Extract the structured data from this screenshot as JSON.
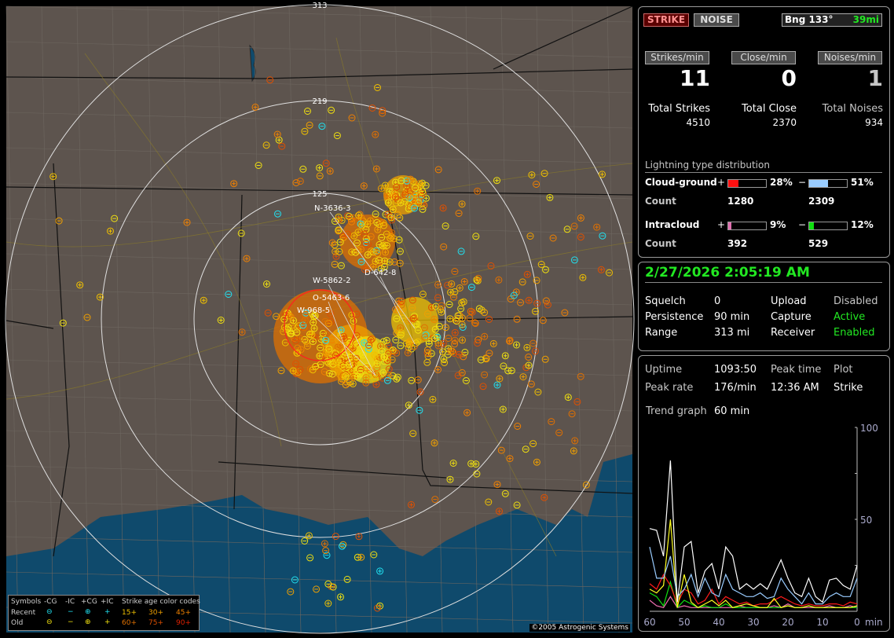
{
  "map": {
    "range_rings": [
      "313",
      "219",
      "125"
    ],
    "storm_labels": [
      "N-3636-3",
      "D-642-8",
      "W-5862-2",
      "O-5463-6",
      "W-968-5"
    ],
    "copyright": "©2005 Astrogenic Systems",
    "colors": {
      "land": "#5d544e",
      "water": "#0f4a6c",
      "ring": "#e0e0e0",
      "recent": "#20e0f0",
      "old": "#f0e010",
      "age15": "#f0c000",
      "age30": "#f0a000",
      "age45": "#f08000",
      "age60": "#e07000",
      "age75": "#e05000",
      "age90": "#e02000"
    }
  },
  "legend": {
    "symbols_label": "Symbols",
    "columns": [
      "-CG",
      "-IC",
      "+CG",
      "+IC"
    ],
    "recent_label": "Recent",
    "old_label": "Old",
    "age_title": "Strike age color codes",
    "ages_recent": [
      "15+",
      "30+",
      "45+"
    ],
    "ages_old": [
      "60+",
      "75+",
      "90+"
    ]
  },
  "top": {
    "strike_btn": "STRIKE",
    "noise_btn": "NOISE",
    "bearing": "Bng 133°",
    "distance": "39mi",
    "rates": [
      {
        "label": "Strikes/min",
        "value": "11",
        "total_label": "Total Strikes",
        "total": "4510"
      },
      {
        "label": "Close/min",
        "value": "0",
        "total_label": "Total Close",
        "total": "2370"
      },
      {
        "label": "Noises/min",
        "value": "1",
        "total_label": "Total Noises",
        "total": "934"
      }
    ],
    "dist_title": "Lightning type distribution",
    "cg_label": "Cloud-ground",
    "ic_label": "Intracloud",
    "count_label": "Count",
    "plus": "+",
    "minus": "−",
    "cg_pos": {
      "pct_text": "28%",
      "pct": 28,
      "count": "1280",
      "color": "#ff1010"
    },
    "cg_neg": {
      "pct_text": "51%",
      "pct": 51,
      "count": "2309",
      "color": "#99ccff"
    },
    "ic_pos": {
      "pct_text": "9%",
      "pct": 9,
      "count": "392",
      "color": "#e070b0"
    },
    "ic_neg": {
      "pct_text": "12%",
      "pct": 12,
      "count": "529",
      "color": "#10e010"
    }
  },
  "status": {
    "datetime": "2/27/2026 2:05:19 AM",
    "rows": [
      {
        "k": "Squelch",
        "v": "0",
        "k2": "Upload",
        "v2": "Disabled"
      },
      {
        "k": "Persistence",
        "v": "90 min",
        "k2": "Capture",
        "v2": "Active"
      },
      {
        "k": "Range",
        "v": "313 mi",
        "k2": "Receiver",
        "v2": "Enabled"
      }
    ]
  },
  "stats": {
    "uptime_label": "Uptime",
    "uptime": "1093:50",
    "peak_time_label": "Peak time",
    "plot_label": "Plot",
    "peak_rate_label": "Peak rate",
    "peak_rate": "176/min",
    "peak_time": "12:36 AM",
    "plot": "Strike",
    "trend_label": "Trend graph",
    "trend": "60 min"
  },
  "chart_data": {
    "type": "line",
    "x": [
      60,
      58,
      56,
      54,
      52,
      50,
      48,
      46,
      44,
      42,
      40,
      38,
      36,
      34,
      32,
      30,
      28,
      26,
      24,
      22,
      20,
      18,
      16,
      14,
      12,
      10,
      8,
      6,
      4,
      2,
      0
    ],
    "xticks": [
      "60",
      "50",
      "40",
      "30",
      "20",
      "10",
      "0"
    ],
    "xlabel": "min",
    "yticks": [
      "100",
      "50"
    ],
    "ylim": [
      0,
      100
    ],
    "xlim": [
      60,
      0
    ],
    "series": [
      {
        "color": "#ffffff",
        "values": [
          45,
          44,
          30,
          82,
          5,
          35,
          38,
          10,
          22,
          26,
          12,
          35,
          30,
          12,
          15,
          12,
          15,
          12,
          20,
          28,
          18,
          10,
          8,
          18,
          8,
          5,
          17,
          18,
          14,
          12,
          25
        ]
      },
      {
        "color": "#99ccff",
        "values": [
          35,
          18,
          18,
          30,
          8,
          12,
          20,
          8,
          18,
          10,
          8,
          20,
          12,
          10,
          8,
          8,
          10,
          7,
          8,
          18,
          12,
          8,
          4,
          10,
          4,
          4,
          8,
          10,
          8,
          8,
          18
        ]
      },
      {
        "color": "#ffff20",
        "values": [
          12,
          10,
          14,
          50,
          2,
          20,
          5,
          2,
          4,
          6,
          3,
          6,
          2,
          3,
          4,
          3,
          2,
          2,
          7,
          2,
          3,
          2,
          2,
          3,
          2,
          2,
          2,
          2,
          2,
          2,
          3
        ]
      },
      {
        "color": "#ff1a1a",
        "values": [
          15,
          12,
          20,
          14,
          4,
          12,
          10,
          4,
          6,
          12,
          4,
          8,
          6,
          4,
          5,
          3,
          4,
          4,
          6,
          8,
          6,
          4,
          3,
          4,
          3,
          3,
          4,
          4,
          3,
          5,
          4
        ]
      },
      {
        "color": "#10e010",
        "values": [
          10,
          8,
          3,
          16,
          2,
          6,
          4,
          2,
          3,
          2,
          2,
          4,
          2,
          2,
          2,
          2,
          2,
          2,
          2,
          2,
          3,
          2,
          2,
          3,
          2,
          2,
          2,
          2,
          2,
          2,
          2
        ]
      },
      {
        "color": "#f070b0",
        "values": [
          6,
          3,
          2,
          8,
          2,
          3,
          2,
          2,
          2,
          2,
          2,
          2,
          2,
          3,
          2,
          2,
          2,
          2,
          3,
          2,
          4,
          2,
          2,
          2,
          2,
          2,
          3,
          2,
          2,
          3,
          2
        ]
      }
    ]
  }
}
